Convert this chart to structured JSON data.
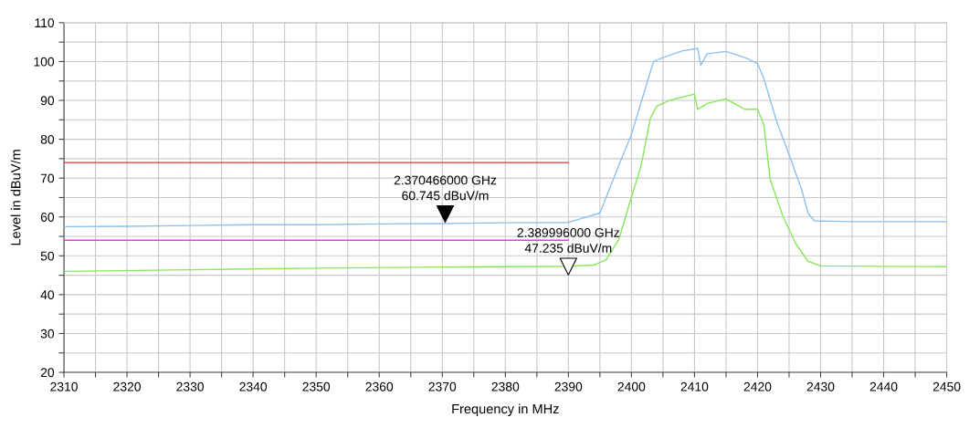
{
  "chart_data": {
    "type": "line",
    "xlabel": "Frequency in MHz",
    "ylabel": "Level in dBuV/m",
    "xlim": [
      2310,
      2450
    ],
    "ylim": [
      20,
      110
    ],
    "xticks": [
      2310,
      {
        "value": 2315,
        "label": null
      },
      2320,
      {
        "value": 2325,
        "label": null
      },
      2330,
      {
        "value": 2335,
        "label": null
      },
      2340,
      {
        "value": 2345,
        "label": null
      },
      2350,
      {
        "value": 2355,
        "label": null
      },
      2360,
      {
        "value": 2365,
        "label": null
      },
      2370,
      {
        "value": 2375,
        "label": null
      },
      2380,
      {
        "value": 2385,
        "label": null
      },
      2390,
      {
        "value": 2395,
        "label": null
      },
      2400,
      {
        "value": 2405,
        "label": null
      },
      2410,
      {
        "value": 2415,
        "label": null
      },
      2420,
      {
        "value": 2425,
        "label": null
      },
      2430,
      {
        "value": 2435,
        "label": null
      },
      2440,
      {
        "value": 2445,
        "label": null
      },
      2450
    ],
    "yticks": [
      20,
      {
        "value": 25,
        "label": null
      },
      30,
      {
        "value": 35,
        "label": null
      },
      40,
      {
        "value": 45,
        "label": null
      },
      50,
      {
        "value": 55,
        "label": null
      },
      60,
      {
        "value": 65,
        "label": null
      },
      70,
      {
        "value": 75,
        "label": null
      },
      80,
      {
        "value": 85,
        "label": null
      },
      90,
      {
        "value": 95,
        "label": null
      },
      100,
      {
        "value": 105,
        "label": null
      },
      110
    ],
    "grid": true,
    "legend": false,
    "series": [
      {
        "color": "#e8333a",
        "x": [
          2310,
          2390
        ],
        "values": [
          74,
          74
        ]
      },
      {
        "color": "#e040e0",
        "x": [
          2310,
          2390
        ],
        "values": [
          54,
          54
        ]
      },
      {
        "color": "#8cc0f0",
        "x": [
          2310,
          2320,
          2330,
          2340,
          2350,
          2360,
          2370,
          2380,
          2390,
          2395,
          2398,
          2400,
          2402,
          2403.5,
          2405,
          2408,
          2410.5,
          2411,
          2412,
          2415,
          2418,
          2420,
          2421,
          2423,
          2425,
          2427,
          2428,
          2429,
          2435,
          2440,
          2450
        ],
        "values": [
          57.5,
          57.6,
          57.8,
          58,
          58,
          58.2,
          58.3,
          58.5,
          58.6,
          61,
          73.3,
          81.2,
          92,
          100,
          101,
          102.7,
          103.4,
          99,
          102,
          102.6,
          101,
          99.5,
          95.6,
          84.7,
          76,
          67,
          61,
          59,
          58.8,
          58.8,
          58.8
        ]
      },
      {
        "color": "#86e858",
        "x": [
          2310,
          2330,
          2350,
          2370,
          2390,
          2394,
          2396,
          2398,
          2400,
          2401.5,
          2403,
          2404,
          2406,
          2410,
          2410.5,
          2412,
          2415,
          2418,
          2420,
          2421,
          2422,
          2424,
          2426,
          2428,
          2430,
          2450
        ],
        "values": [
          46,
          46.4,
          46.8,
          47.1,
          47.3,
          47.6,
          49,
          54.2,
          65.1,
          73,
          85.4,
          88.5,
          90,
          91.6,
          87.7,
          89.2,
          90.4,
          87.7,
          87.7,
          83.8,
          69.7,
          60.3,
          53.3,
          48.6,
          47.4,
          47.2
        ]
      },
      {
        "type": "scatter",
        "marker": "triangle",
        "color": "#000000",
        "x": [
          2370.466
        ],
        "values": [
          60.745
        ]
      },
      {
        "type": "scatter",
        "marker": "triangle",
        "color": "#ffffff",
        "x": [
          2389.996
        ],
        "values": [
          47.235
        ]
      }
    ],
    "annotations": [
      {
        "text": "2.370466000 GHz\n60.745 dBuV/m",
        "x": 2370.466,
        "y": 60.745
      },
      {
        "text": "2.389996000 GHz\n47.235 dBuV/m",
        "x": 2389.996,
        "y": 47.235
      }
    ]
  }
}
